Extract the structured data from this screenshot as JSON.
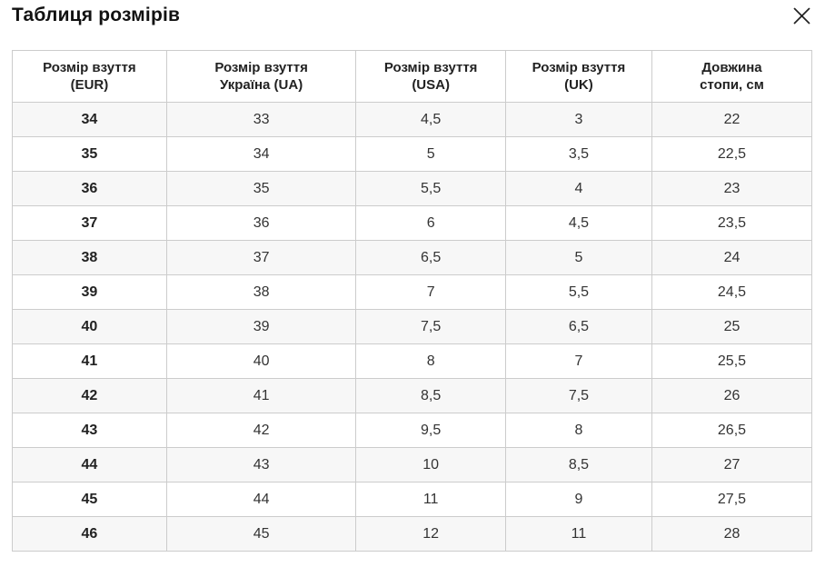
{
  "modal": {
    "title": "Таблиця розмірів",
    "icons": {
      "close": "✕"
    },
    "colors": {
      "background": "#ffffff",
      "border": "#cccccc",
      "row_stripe": "#f7f7f7",
      "text": "#333333",
      "title_text": "#111111"
    }
  },
  "table": {
    "columns": [
      {
        "id": "eur",
        "label": "Розмір взуття\n(EUR)"
      },
      {
        "id": "ua",
        "label": "Розмір взуття\nУкраїна (UA)"
      },
      {
        "id": "usa",
        "label": "Розмір взуття\n(USA)"
      },
      {
        "id": "uk",
        "label": "Розмір взуття\n(UK)"
      },
      {
        "id": "foot-length-cm",
        "label": "Довжина\nстопи, см"
      }
    ],
    "rows": [
      [
        "34",
        "33",
        "4,5",
        "3",
        "22"
      ],
      [
        "35",
        "34",
        "5",
        "3,5",
        "22,5"
      ],
      [
        "36",
        "35",
        "5,5",
        "4",
        "23"
      ],
      [
        "37",
        "36",
        "6",
        "4,5",
        "23,5"
      ],
      [
        "38",
        "37",
        "6,5",
        "5",
        "24"
      ],
      [
        "39",
        "38",
        "7",
        "5,5",
        "24,5"
      ],
      [
        "40",
        "39",
        "7,5",
        "6,5",
        "25"
      ],
      [
        "41",
        "40",
        "8",
        "7",
        "25,5"
      ],
      [
        "42",
        "41",
        "8,5",
        "7,5",
        "26"
      ],
      [
        "43",
        "42",
        "9,5",
        "8",
        "26,5"
      ],
      [
        "44",
        "43",
        "10",
        "8,5",
        "27"
      ],
      [
        "45",
        "44",
        "11",
        "9",
        "27,5"
      ],
      [
        "46",
        "45",
        "12",
        "11",
        "28"
      ]
    ]
  }
}
